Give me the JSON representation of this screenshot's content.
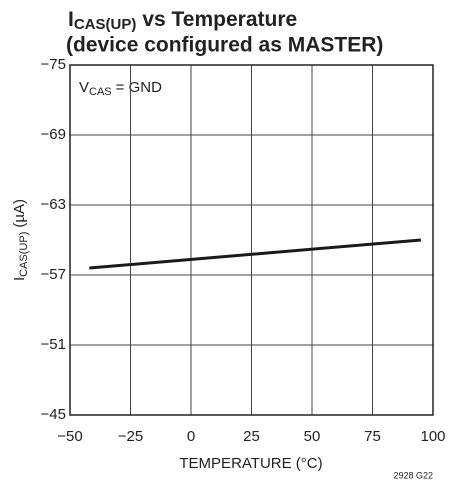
{
  "chart_data": {
    "type": "line",
    "title": "I",
    "title_subscript": "CAS(UP)",
    "title_rest": "vs Temperature",
    "subtitle": "(device configured as MASTER)",
    "xlabel": "TEMPERATURE (°C)",
    "ylabel": "I",
    "ylabel_subscript": "CAS(UP)",
    "ylabel_rest": "(µA)",
    "annotation": "V",
    "annotation_subscript": "CAS",
    "annotation_rest": "= GND",
    "footnote": "2928 G22",
    "x": [
      -42,
      95
    ],
    "series": [
      {
        "name": "ICAS(UP)",
        "color": "#1a1a1a",
        "values": [
          -57.6,
          -60.0
        ]
      }
    ],
    "xlim": [
      -50,
      100
    ],
    "xticks": [
      {
        "value": -50,
        "label": "−50"
      },
      {
        "value": -25,
        "label": "−25"
      },
      0,
      25,
      50,
      75,
      100
    ],
    "ylim": [
      -45,
      -75
    ],
    "yticks": [
      {
        "value": -75,
        "label": "−75"
      },
      {
        "value": -69,
        "label": "−69"
      },
      {
        "value": -63,
        "label": "−63"
      },
      {
        "value": -57,
        "label": "−57"
      },
      {
        "value": -51,
        "label": "−51"
      },
      {
        "value": -45,
        "label": "−45"
      }
    ],
    "grid": true
  }
}
